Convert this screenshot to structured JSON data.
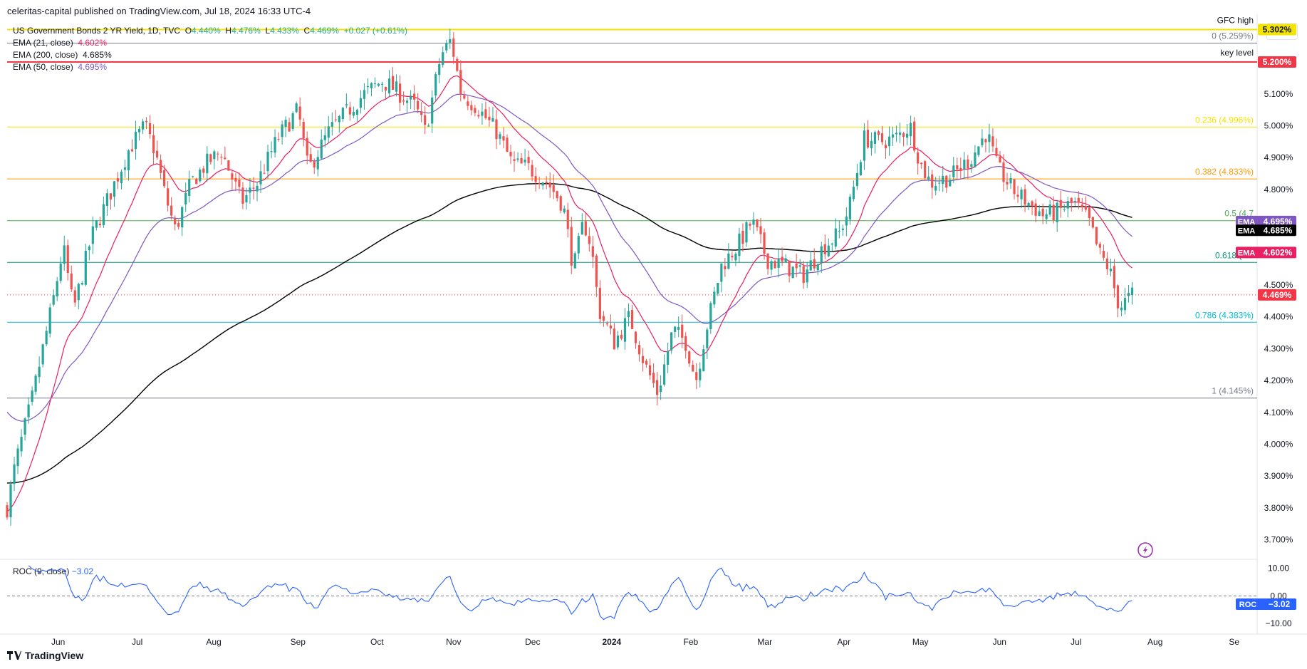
{
  "header": {
    "published": "celeritas-capital published on TradingView.com, Jul 18, 2024 16:33 UTC-4"
  },
  "legend": {
    "title": "US Government Bonds 2 YR Yield, 1D, TVC",
    "o_label": "O",
    "o_value": "4.440%",
    "h_label": "H",
    "h_value": "4.476%",
    "l_label": "L",
    "l_value": "4.433%",
    "c_label": "C",
    "c_value": "4.469%",
    "change": "+0.027 (+0.61%)",
    "ema21_label": "EMA (21, close)",
    "ema21_value": "4.602%",
    "ema200_label": "EMA (200, close)",
    "ema200_value": "4.685%",
    "ema50_label": "EMA (50, close)",
    "ema50_value": "4.695%"
  },
  "toolbar": {
    "percent_button": "%"
  },
  "footer": {
    "logo_text": "TradingView"
  },
  "colors": {
    "up": "#26a69a",
    "down": "#ef5350",
    "ema21": "#e91e63",
    "ema50": "#7e57c2",
    "ema200": "#000000",
    "gfc": "#f5e400",
    "key": "#f23645",
    "fib0382": "#ff9800",
    "fib05": "#4caf50",
    "fib0618": "#089981",
    "fib0786": "#00bcd4",
    "fib1": "#787b86",
    "roc": "#2962ff",
    "last_price": "#f23645"
  },
  "chart_data": {
    "type": "candlestick",
    "symbol": "US Government Bonds 2 YR Yield",
    "timeframe": "1D",
    "ylim": [
      3.65,
      5.35
    ],
    "y_ticks": [
      "5.100%",
      "5.000%",
      "4.900%",
      "4.800%",
      "4.500%",
      "4.400%",
      "4.300%",
      "4.200%",
      "4.100%",
      "4.000%",
      "3.900%",
      "3.800%",
      "3.700%"
    ],
    "y_tick_values": [
      5.1,
      5.0,
      4.9,
      4.8,
      4.5,
      4.4,
      4.3,
      4.2,
      4.1,
      4.0,
      3.9,
      3.8,
      3.7
    ],
    "x_labels": [
      "Jun",
      "Jul",
      "Aug",
      "Sep",
      "Oct",
      "Nov",
      "Dec",
      "2024",
      "Feb",
      "Mar",
      "Apr",
      "May",
      "Jun",
      "Jul",
      "Aug",
      "Se"
    ],
    "x_label_days": [
      20,
      51,
      81,
      114,
      145,
      175,
      206,
      237,
      268,
      297,
      328,
      358,
      389,
      419,
      450,
      481
    ],
    "days_total": 490,
    "last_day": 441,
    "price_path": [
      [
        0,
        3.8
      ],
      [
        3,
        3.93
      ],
      [
        10,
        4.15
      ],
      [
        18,
        4.45
      ],
      [
        22,
        4.62
      ],
      [
        26,
        4.42
      ],
      [
        33,
        4.65
      ],
      [
        40,
        4.78
      ],
      [
        48,
        4.93
      ],
      [
        54,
        5.0
      ],
      [
        58,
        4.92
      ],
      [
        62,
        4.78
      ],
      [
        66,
        4.67
      ],
      [
        72,
        4.82
      ],
      [
        78,
        4.88
      ],
      [
        84,
        4.92
      ],
      [
        92,
        4.76
      ],
      [
        98,
        4.82
      ],
      [
        106,
        4.96
      ],
      [
        114,
        5.05
      ],
      [
        118,
        4.86
      ],
      [
        126,
        4.98
      ],
      [
        134,
        5.05
      ],
      [
        140,
        5.1
      ],
      [
        147,
        5.14
      ],
      [
        151,
        5.12
      ],
      [
        160,
        5.06
      ],
      [
        164,
        4.98
      ],
      [
        170,
        5.22
      ],
      [
        174,
        5.27
      ],
      [
        178,
        5.1
      ],
      [
        184,
        5.06
      ],
      [
        192,
        4.98
      ],
      [
        198,
        4.88
      ],
      [
        204,
        4.87
      ],
      [
        212,
        4.82
      ],
      [
        218,
        4.75
      ],
      [
        222,
        4.55
      ],
      [
        226,
        4.7
      ],
      [
        229,
        4.62
      ],
      [
        232,
        4.42
      ],
      [
        238,
        4.32
      ],
      [
        244,
        4.4
      ],
      [
        250,
        4.25
      ],
      [
        255,
        4.16
      ],
      [
        261,
        4.36
      ],
      [
        266,
        4.32
      ],
      [
        270,
        4.2
      ],
      [
        274,
        4.36
      ],
      [
        280,
        4.56
      ],
      [
        286,
        4.62
      ],
      [
        292,
        4.7
      ],
      [
        298,
        4.58
      ],
      [
        305,
        4.56
      ],
      [
        312,
        4.53
      ],
      [
        320,
        4.62
      ],
      [
        326,
        4.66
      ],
      [
        330,
        4.74
      ],
      [
        336,
        4.96
      ],
      [
        342,
        4.95
      ],
      [
        348,
        4.96
      ],
      [
        354,
        5.0
      ],
      [
        358,
        4.88
      ],
      [
        362,
        4.82
      ],
      [
        370,
        4.84
      ],
      [
        378,
        4.9
      ],
      [
        384,
        4.98
      ],
      [
        388,
        4.87
      ],
      [
        394,
        4.8
      ],
      [
        400,
        4.76
      ],
      [
        406,
        4.72
      ],
      [
        412,
        4.73
      ],
      [
        418,
        4.76
      ],
      [
        424,
        4.7
      ],
      [
        428,
        4.6
      ],
      [
        432,
        4.55
      ],
      [
        436,
        4.43
      ],
      [
        441,
        4.469
      ]
    ],
    "candle_days": 441,
    "series": [
      {
        "name": "EMA (21, close)",
        "last": 4.602
      },
      {
        "name": "EMA (200, close)",
        "last": 4.685
      },
      {
        "name": "EMA (50, close)",
        "last": 4.695
      }
    ],
    "levels": [
      {
        "label": "GFC high",
        "value": 5.302,
        "badge": "5.302%",
        "color": "#f5e400"
      },
      {
        "label": "key level",
        "value": 5.2,
        "badge": "5.200%",
        "color": "#f23645"
      }
    ],
    "fib_levels": [
      {
        "ratio": "0",
        "label": "0 (5.259%)",
        "value": 5.259,
        "color": "#787b86"
      },
      {
        "ratio": "0.236",
        "label": "0.236 (4.996%)",
        "value": 4.996,
        "color": "#f5e400"
      },
      {
        "ratio": "0.382",
        "label": "0.382 (4.833%)",
        "value": 4.833,
        "color": "#ff9800"
      },
      {
        "ratio": "0.5",
        "label": "0.5 (4.7",
        "value": 4.702,
        "color": "#4caf50"
      },
      {
        "ratio": "0.618",
        "label": "0.618 (4.5",
        "value": 4.571,
        "color": "#089981"
      },
      {
        "ratio": "0.786",
        "label": "0.786 (4.383%)",
        "value": 4.383,
        "color": "#00bcd4"
      },
      {
        "ratio": "1",
        "label": "1 (4.145%)",
        "value": 4.145,
        "color": "#787b86"
      }
    ],
    "badges": [
      {
        "text": "4.469%",
        "value": 4.469,
        "color": "#f23645"
      }
    ],
    "ema_badges": [
      {
        "tag": "EMA",
        "text": "4.695%",
        "value": 4.695,
        "color": "#7e57c2"
      },
      {
        "tag": "EMA",
        "text": "4.685%",
        "value": 4.685,
        "color": "#000000"
      },
      {
        "tag": "EMA",
        "text": "4.602%",
        "value": 4.602,
        "color": "#e91e63"
      }
    ],
    "roc": {
      "label": "ROC (9, close)",
      "value_label": "−3.02",
      "last": -3.02,
      "ylim": [
        -10,
        12
      ],
      "y_ticks": [
        "10.00",
        "0.00",
        "−10.00"
      ],
      "y_tick_values": [
        10,
        0,
        -10
      ],
      "badge_tag": "ROC",
      "badge_text": "−3.02"
    }
  }
}
